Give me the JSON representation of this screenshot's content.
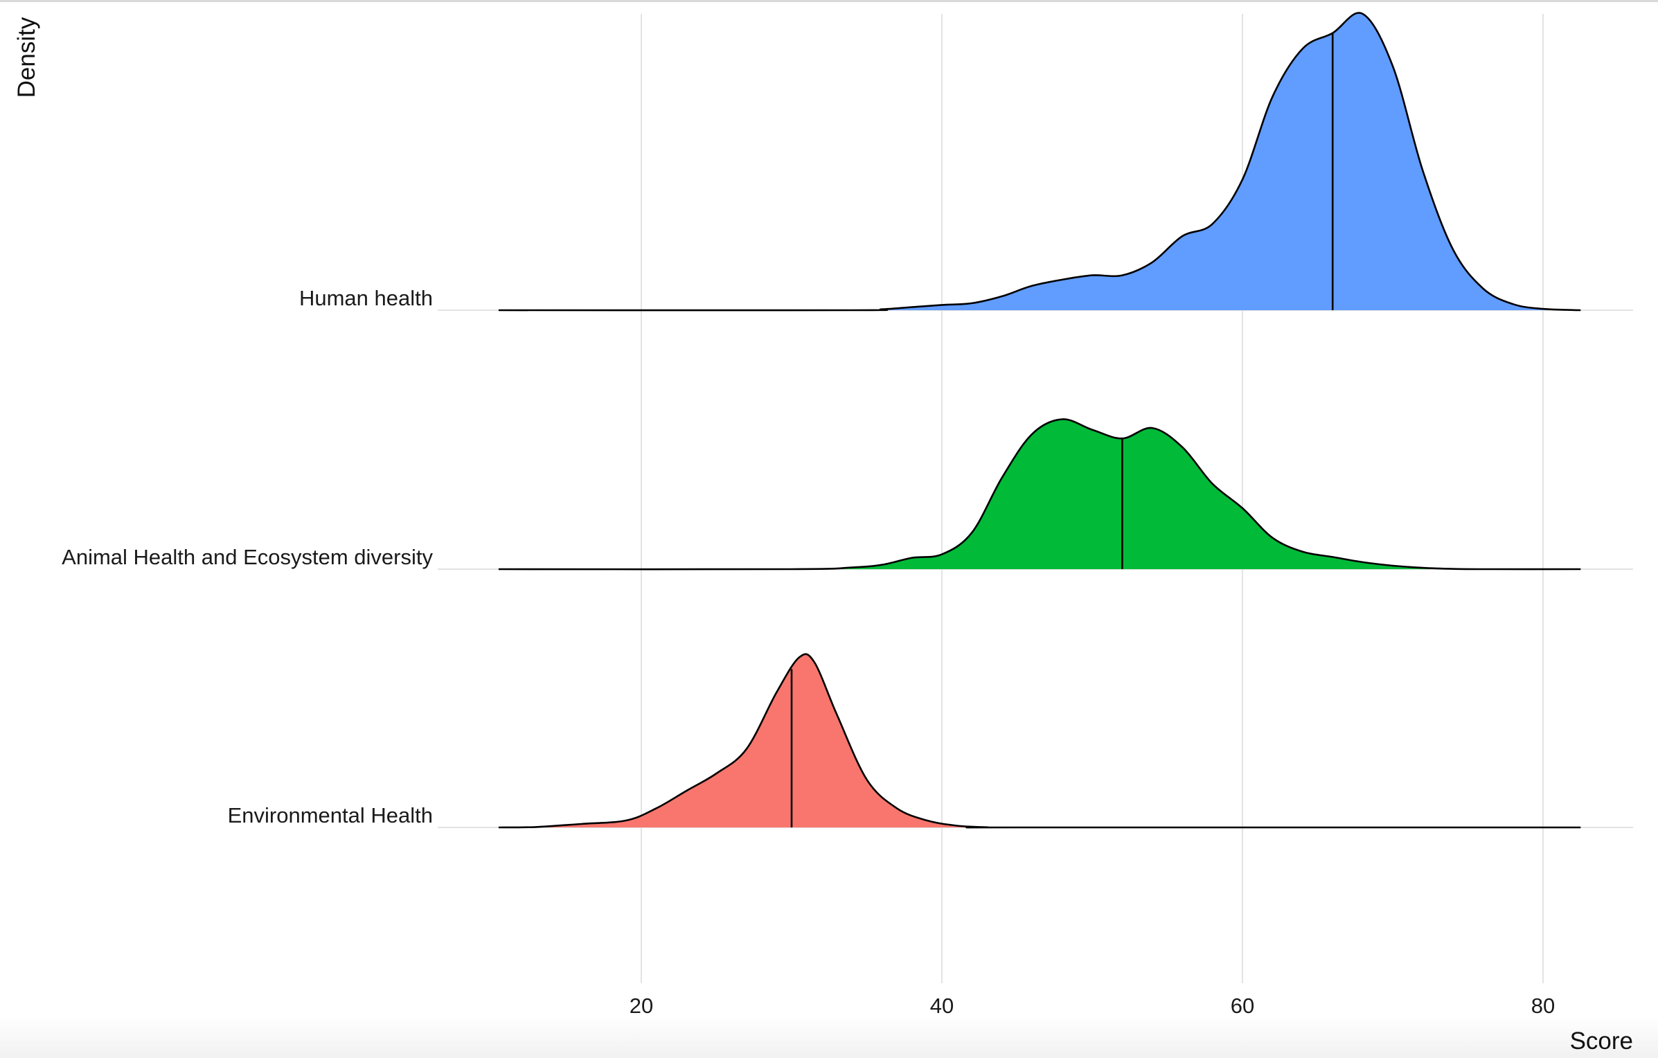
{
  "chart_data": {
    "type": "ridgeline",
    "xlabel": "Score",
    "ylabel": "Density",
    "xlim": [
      10.5,
      82.5
    ],
    "xticks": [
      20,
      40,
      60,
      80
    ],
    "grid": true,
    "legend": "none",
    "series": [
      {
        "name": "Environmental Health",
        "color": "#F8766D",
        "median": 30,
        "density": [
          [
            10.5,
            0
          ],
          [
            13,
            0.005
          ],
          [
            16,
            0.04
          ],
          [
            19,
            0.08
          ],
          [
            21,
            0.22
          ],
          [
            23,
            0.42
          ],
          [
            25,
            0.62
          ],
          [
            27,
            0.9
          ],
          [
            29,
            1.55
          ],
          [
            30.5,
            1.95
          ],
          [
            31.5,
            1.9
          ],
          [
            33,
            1.3
          ],
          [
            35,
            0.55
          ],
          [
            37,
            0.22
          ],
          [
            39,
            0.08
          ],
          [
            41,
            0.02
          ],
          [
            43,
            0.002
          ],
          [
            45,
            0
          ],
          [
            82.5,
            0
          ]
        ]
      },
      {
        "name": "Animal Health and Ecosystem diversity",
        "color": "#00BA38",
        "median": 52,
        "density": [
          [
            10.5,
            0
          ],
          [
            30,
            0
          ],
          [
            34,
            0.02
          ],
          [
            36,
            0.05
          ],
          [
            38,
            0.13
          ],
          [
            40,
            0.17
          ],
          [
            42,
            0.42
          ],
          [
            44,
            1.05
          ],
          [
            46,
            1.55
          ],
          [
            48,
            1.72
          ],
          [
            50,
            1.6
          ],
          [
            52,
            1.5
          ],
          [
            54,
            1.62
          ],
          [
            56,
            1.4
          ],
          [
            58,
            0.98
          ],
          [
            60,
            0.7
          ],
          [
            62,
            0.36
          ],
          [
            64,
            0.2
          ],
          [
            66,
            0.14
          ],
          [
            68,
            0.08
          ],
          [
            70,
            0.04
          ],
          [
            72,
            0.015
          ],
          [
            74,
            0.003
          ],
          [
            76,
            0
          ],
          [
            82.5,
            0
          ]
        ]
      },
      {
        "name": "Human health",
        "color": "#619CFF",
        "median": 66,
        "density": [
          [
            10.5,
            0
          ],
          [
            34,
            0
          ],
          [
            36,
            0.01
          ],
          [
            38,
            0.035
          ],
          [
            40,
            0.06
          ],
          [
            42,
            0.08
          ],
          [
            44,
            0.16
          ],
          [
            46,
            0.28
          ],
          [
            48,
            0.35
          ],
          [
            50,
            0.4
          ],
          [
            52,
            0.4
          ],
          [
            54,
            0.55
          ],
          [
            56,
            0.85
          ],
          [
            58,
            0.99
          ],
          [
            60,
            1.5
          ],
          [
            62,
            2.45
          ],
          [
            64,
            3.0
          ],
          [
            66,
            3.18
          ],
          [
            68,
            3.4
          ],
          [
            70,
            2.8
          ],
          [
            72,
            1.6
          ],
          [
            74,
            0.7
          ],
          [
            76,
            0.25
          ],
          [
            78,
            0.07
          ],
          [
            80,
            0.015
          ],
          [
            82.5,
            0
          ]
        ]
      }
    ]
  }
}
